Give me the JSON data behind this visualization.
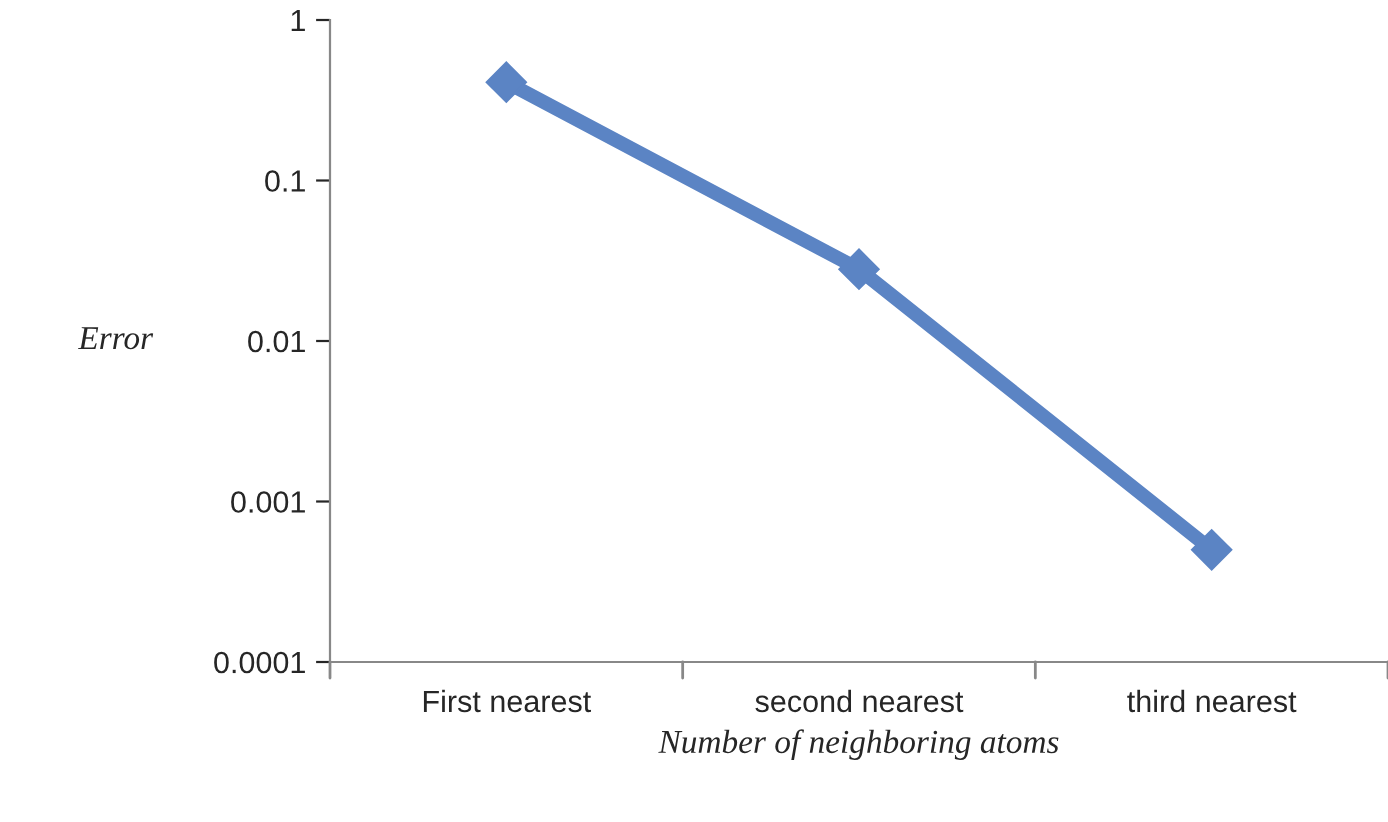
{
  "chart_data": {
    "type": "line",
    "xlabel": "Number of neighboring atoms",
    "ylabel": "Error",
    "categories": [
      "First nearest",
      "second nearest",
      "third nearest"
    ],
    "series": [
      {
        "color": "#5b84c4",
        "values": [
          0.41,
          0.028,
          0.0005
        ]
      }
    ],
    "log": "y",
    "ylim": [
      0.0001,
      1
    ],
    "yticks": [
      0.0001,
      0.001,
      0.01,
      0.1,
      1
    ],
    "marker": "diamond",
    "line_style": "solid",
    "grid": false,
    "legend": false
  }
}
